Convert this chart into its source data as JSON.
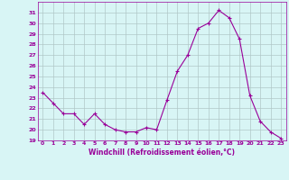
{
  "x": [
    0,
    1,
    2,
    3,
    4,
    5,
    6,
    7,
    8,
    9,
    10,
    11,
    12,
    13,
    14,
    15,
    16,
    17,
    18,
    19,
    20,
    21,
    22,
    23
  ],
  "y": [
    23.5,
    22.5,
    21.5,
    21.5,
    20.5,
    21.5,
    20.5,
    20.0,
    19.8,
    19.8,
    20.2,
    20.0,
    22.8,
    25.5,
    27.0,
    29.5,
    30.0,
    31.2,
    30.5,
    28.5,
    23.2,
    20.8,
    19.8,
    19.2
  ],
  "line_color": "#990099",
  "marker": "+",
  "marker_size": 3,
  "xlabel": "Windchill (Refroidissement éolien,°C)",
  "ylabel": "",
  "ylim": [
    19,
    32
  ],
  "xlim": [
    -0.5,
    23.5
  ],
  "yticks": [
    19,
    20,
    21,
    22,
    23,
    24,
    25,
    26,
    27,
    28,
    29,
    30,
    31
  ],
  "xticks": [
    0,
    1,
    2,
    3,
    4,
    5,
    6,
    7,
    8,
    9,
    10,
    11,
    12,
    13,
    14,
    15,
    16,
    17,
    18,
    19,
    20,
    21,
    22,
    23
  ],
  "bg_color": "#d8f5f5",
  "grid_color": "#b0c8c8",
  "tick_color": "#990099",
  "xlabel_color": "#990099"
}
